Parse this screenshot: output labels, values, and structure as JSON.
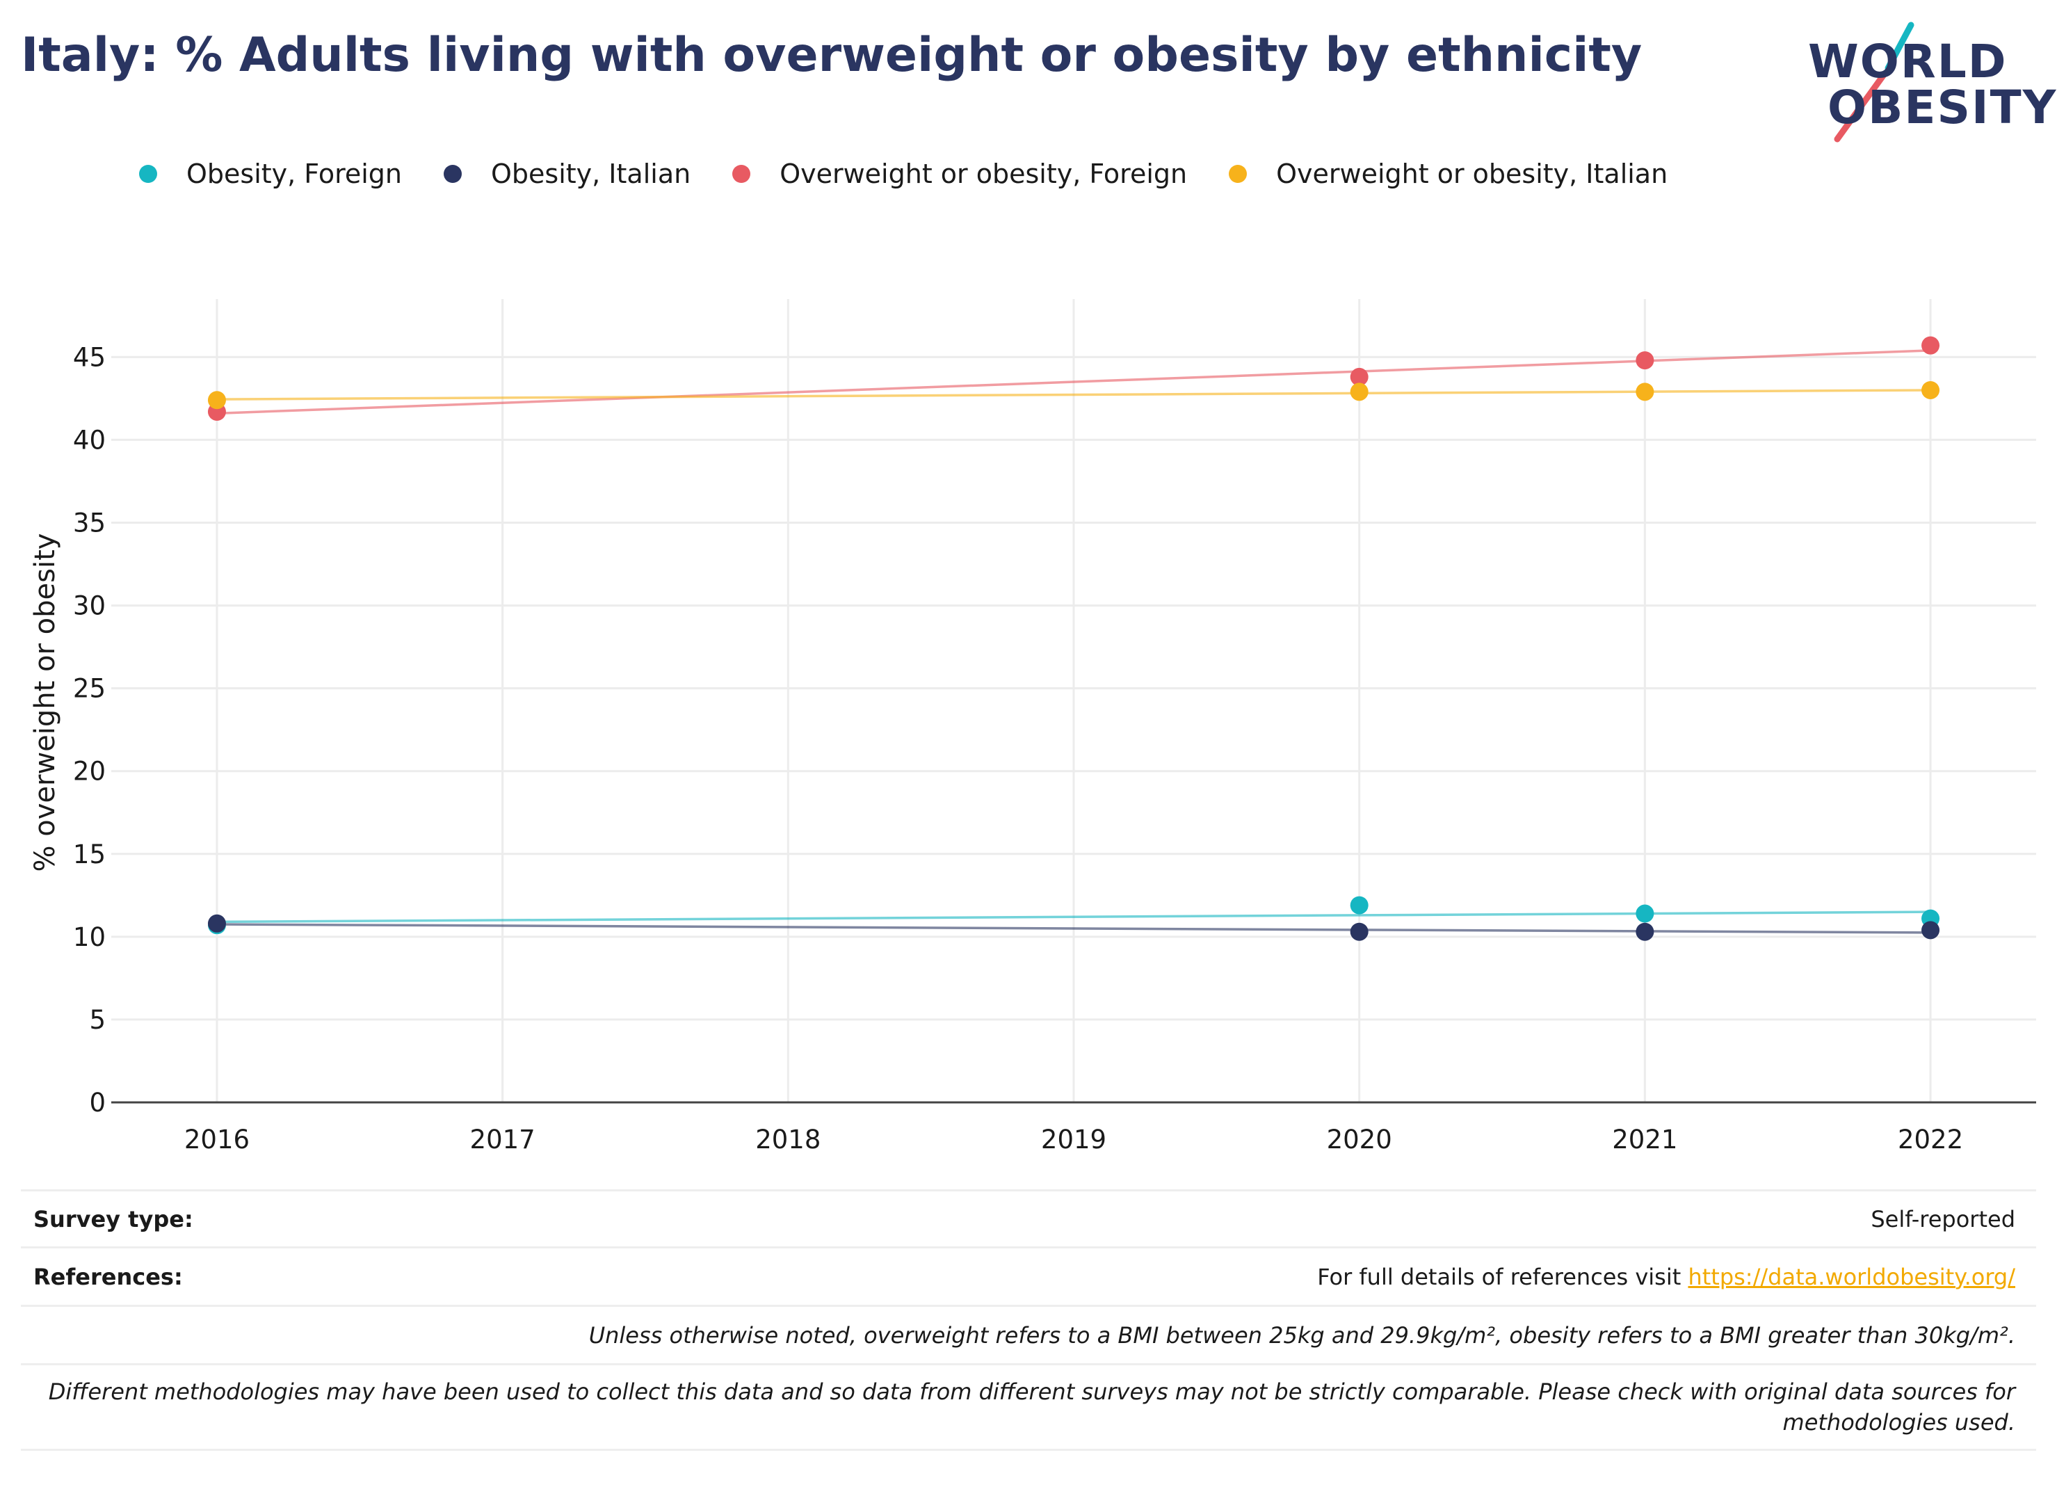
{
  "title": "Italy: % Adults living with overweight or obesity by ethnicity",
  "logo": {
    "line1": "WORLD",
    "line2": "OBESITY"
  },
  "colors": {
    "obesity_foreign": "#16b6c2",
    "obesity_italian": "#2a3561",
    "ow_foreign": "#e85a62",
    "ow_italian": "#f7b21b",
    "title": "#2a3561",
    "link": "#f2a900"
  },
  "chart_data": {
    "type": "scatter",
    "title": "Italy: % Adults living with overweight or obesity by ethnicity",
    "xlabel": "",
    "ylabel": "% overweight or obesity",
    "x_ticks": [
      "2016",
      "2017",
      "2018",
      "2019",
      "2020",
      "2021",
      "2022"
    ],
    "x_range": [
      2015.63,
      2022.37
    ],
    "ylim": [
      0,
      48.5
    ],
    "y_ticks": [
      0,
      5,
      10,
      15,
      20,
      25,
      30,
      35,
      40,
      45
    ],
    "grid": true,
    "legend_position": "top",
    "trendlines": true,
    "series": [
      {
        "name": "Obesity, Foreign",
        "color_key": "obesity_foreign",
        "x": [
          2016,
          2020,
          2021,
          2022
        ],
        "y": [
          10.7,
          11.9,
          11.4,
          11.1
        ],
        "trend": [
          [
            2016,
            10.9
          ],
          [
            2022,
            11.5
          ]
        ]
      },
      {
        "name": "Obesity, Italian",
        "color_key": "obesity_italian",
        "x": [
          2016,
          2020,
          2021,
          2022
        ],
        "y": [
          10.8,
          10.3,
          10.3,
          10.4
        ],
        "trend": [
          [
            2016,
            10.75
          ],
          [
            2022,
            10.25
          ]
        ]
      },
      {
        "name": "Overweight or obesity, Foreign",
        "color_key": "ow_foreign",
        "x": [
          2016,
          2020,
          2021,
          2022
        ],
        "y": [
          41.7,
          43.8,
          44.8,
          45.7
        ],
        "trend": [
          [
            2016,
            41.6
          ],
          [
            2022,
            45.4
          ]
        ]
      },
      {
        "name": "Overweight or obesity, Italian",
        "color_key": "ow_italian",
        "x": [
          2016,
          2020,
          2021,
          2022
        ],
        "y": [
          42.4,
          42.9,
          42.9,
          43.0
        ],
        "trend": [
          [
            2016,
            42.45
          ],
          [
            2022,
            43.0
          ]
        ]
      }
    ]
  },
  "footer": {
    "survey_type_label": "Survey type:",
    "survey_type_value": "Self-reported",
    "references_label": "References:",
    "references_text": "For full details of references visit ",
    "references_link": "https://data.worldobesity.org/",
    "note1": "Unless otherwise noted, overweight refers to a BMI between 25kg and 29.9kg/m², obesity refers to a BMI greater than 30kg/m².",
    "note2_line1": "Different methodologies may have been used to collect this data and so data from different surveys may not be strictly comparable. Please check with original data sources for",
    "note2_line2": "methodologies used."
  }
}
